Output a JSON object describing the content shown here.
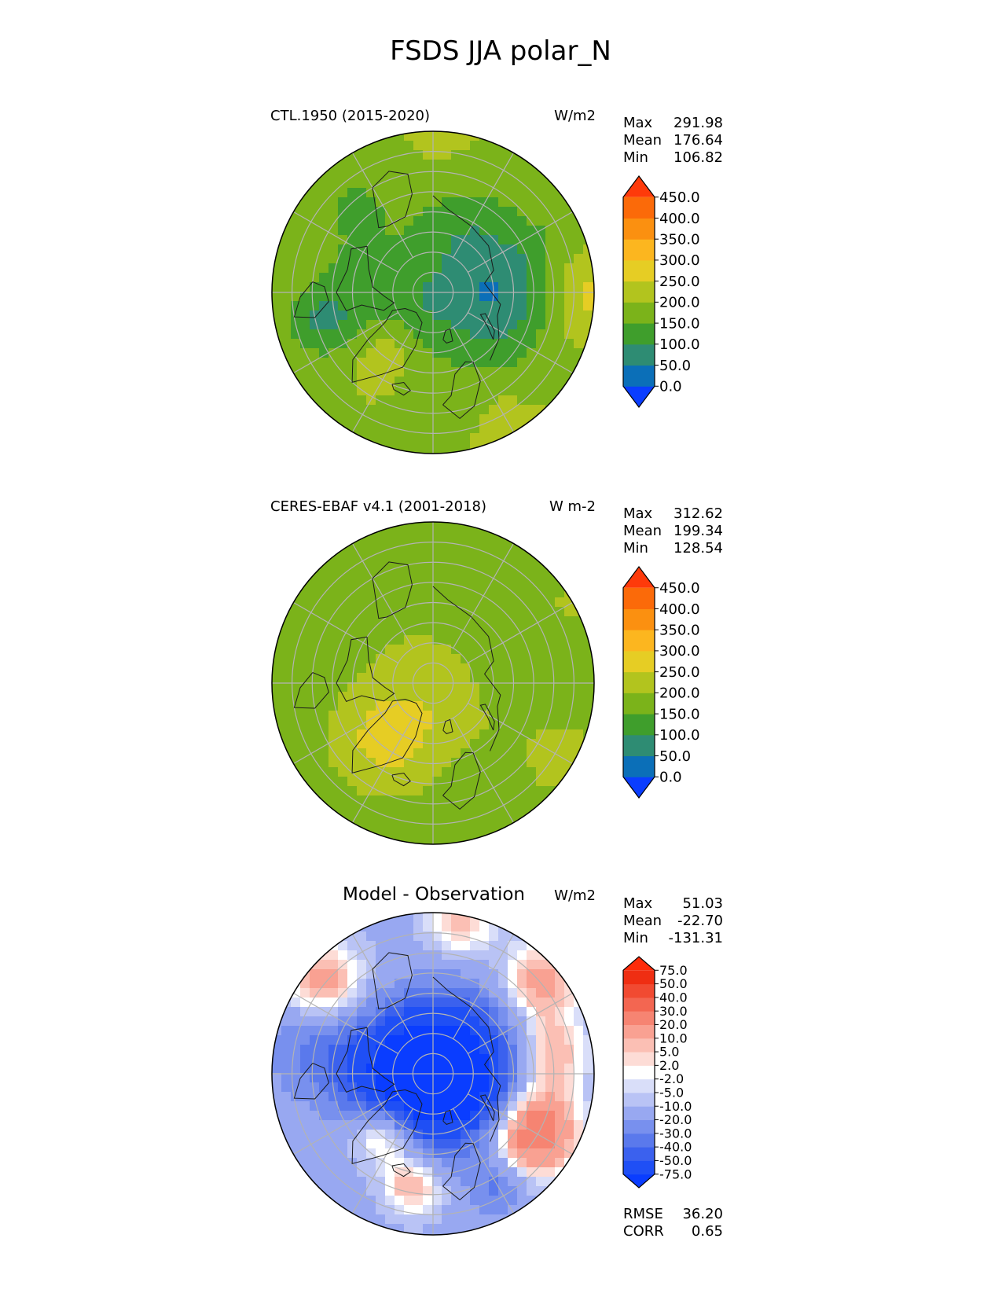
{
  "figure_title": "FSDS JJA polar_N",
  "chart_data": [
    {
      "type": "heatmap",
      "projection": "north-polar-stereographic",
      "title_left": "CTL.1950 (2015-2020)",
      "units": "W/m2",
      "stats": [
        {
          "label": "Max",
          "value": "291.98"
        },
        {
          "label": "Mean",
          "value": "176.64"
        },
        {
          "label": "Min",
          "value": "106.82"
        }
      ],
      "colorbar": {
        "extend": "both",
        "boundaries": [
          0,
          50,
          100,
          150,
          200,
          250,
          300,
          350,
          400,
          450
        ],
        "tick_labels": [
          "0.0",
          "50.0",
          "100.0",
          "150.0",
          "200.0",
          "250.0",
          "300.0",
          "350.0",
          "400.0",
          "450.0"
        ],
        "colors": [
          "#0a3dff",
          "#0b6fb8",
          "#2e8c73",
          "#3f9e2c",
          "#7bb31a",
          "#b2c41e",
          "#e6cd24",
          "#fcb61f",
          "#fb9010",
          "#fb6a09",
          "#fe3a0a"
        ]
      },
      "field": {
        "base_value": 200,
        "land_color": "#6aa22a",
        "blobs": [
          {
            "lon": 130,
            "lat": 80,
            "r": 11,
            "value": 140
          },
          {
            "lon": -20,
            "lat": 82,
            "r": 9,
            "value": 145
          },
          {
            "lon": -85,
            "lat": 70,
            "r": 12,
            "value": 140
          },
          {
            "lon": 60,
            "lat": 70,
            "r": 9,
            "value": 140
          },
          {
            "lon": 110,
            "lat": 65,
            "r": 10,
            "value": 150
          },
          {
            "lon": -40,
            "lat": 72,
            "r": 7,
            "value": 270
          },
          {
            "lon": -140,
            "lat": 60,
            "r": 8,
            "value": 150
          },
          {
            "lon": 90,
            "lat": 75,
            "r": 8,
            "value": 150
          },
          {
            "lon": 0,
            "lat": 62,
            "r": 6,
            "value": 160
          },
          {
            "lon": -75,
            "lat": 62,
            "r": 6,
            "value": 130
          },
          {
            "lon": 160,
            "lat": 70,
            "r": 8,
            "value": 160
          },
          {
            "lon": -100,
            "lat": 55,
            "r": 6,
            "value": 210
          },
          {
            "lon": 30,
            "lat": 55,
            "r": 6,
            "value": 215
          },
          {
            "lon": 90,
            "lat": 52,
            "r": 7,
            "value": 270
          },
          {
            "lon": -150,
            "lat": 52,
            "r": 6,
            "value": 205
          },
          {
            "lon": 175,
            "lat": 55,
            "r": 6,
            "value": 210
          }
        ]
      }
    },
    {
      "type": "heatmap",
      "projection": "north-polar-stereographic",
      "title_left": "CERES-EBAF v4.1 (2001-2018)",
      "units": "W m-2",
      "stats": [
        {
          "label": "Max",
          "value": "312.62"
        },
        {
          "label": "Mean",
          "value": "199.34"
        },
        {
          "label": "Min",
          "value": "128.54"
        }
      ],
      "colorbar": {
        "extend": "both",
        "boundaries": [
          0,
          50,
          100,
          150,
          200,
          250,
          300,
          350,
          400,
          450
        ],
        "tick_labels": [
          "0.0",
          "50.0",
          "100.0",
          "150.0",
          "200.0",
          "250.0",
          "300.0",
          "350.0",
          "400.0",
          "450.0"
        ],
        "colors": [
          "#0a3dff",
          "#0b6fb8",
          "#2e8c73",
          "#3f9e2c",
          "#7bb31a",
          "#b2c41e",
          "#e6cd24",
          "#fcb61f",
          "#fb9010",
          "#fb6a09",
          "#fe3a0a"
        ]
      },
      "field": {
        "base_value": 190,
        "land_color": "#6aa22a",
        "blobs": [
          {
            "lon": 0,
            "lat": 86,
            "r": 10,
            "value": 235
          },
          {
            "lon": -40,
            "lat": 72,
            "r": 7,
            "value": 275
          },
          {
            "lon": 100,
            "lat": 70,
            "r": 10,
            "value": 170
          },
          {
            "lon": -120,
            "lat": 60,
            "r": 10,
            "value": 185
          },
          {
            "lon": 30,
            "lat": 62,
            "r": 7,
            "value": 180
          },
          {
            "lon": 150,
            "lat": 65,
            "r": 10,
            "value": 180
          },
          {
            "lon": -80,
            "lat": 58,
            "r": 7,
            "value": 190
          },
          {
            "lon": 60,
            "lat": 55,
            "r": 8,
            "value": 210
          },
          {
            "lon": -170,
            "lat": 55,
            "r": 8,
            "value": 180
          },
          {
            "lon": 120,
            "lat": 52,
            "r": 6,
            "value": 205
          }
        ]
      }
    },
    {
      "type": "heatmap",
      "projection": "north-polar-stereographic",
      "title_center": "Model - Observation",
      "units": "W/m2",
      "stats": [
        {
          "label": "Max",
          "value": "51.03"
        },
        {
          "label": "Mean",
          "value": "-22.70"
        },
        {
          "label": "Min",
          "value": "-131.31"
        }
      ],
      "metrics": [
        {
          "label": "RMSE",
          "value": "36.20"
        },
        {
          "label": "CORR",
          "value": "0.65"
        }
      ],
      "colorbar": {
        "extend": "both",
        "boundaries": [
          -75,
          -50,
          -40,
          -30,
          -20,
          -10,
          -5,
          -2,
          2,
          5,
          10,
          20,
          30,
          40,
          50,
          75
        ],
        "tick_labels": [
          "-75.0",
          "-50.0",
          "-40.0",
          "-30.0",
          "-20.0",
          "-10.0",
          "-5.0",
          "-2.0",
          "2.0",
          "5.0",
          "10.0",
          "20.0",
          "30.0",
          "40.0",
          "50.0",
          "75.0"
        ],
        "colors": [
          "#0a3dff",
          "#1f4ff5",
          "#3b61ee",
          "#5a79ec",
          "#7890ee",
          "#98a8f1",
          "#b9c3f5",
          "#d9def9",
          "#ffffff",
          "#fddcd6",
          "#fbbfb4",
          "#f9a192",
          "#f68472",
          "#f36651",
          "#f14a31",
          "#ef2e12",
          "#fe2b0a"
        ]
      },
      "field": {
        "base_value": -12,
        "land_color": "#1c47f2",
        "blobs": [
          {
            "lon": 0,
            "lat": 88,
            "r": 10,
            "value": -60
          },
          {
            "lon": 60,
            "lat": 82,
            "r": 10,
            "value": -55
          },
          {
            "lon": -90,
            "lat": 80,
            "r": 10,
            "value": -60
          },
          {
            "lon": 150,
            "lat": 80,
            "r": 10,
            "value": -45
          },
          {
            "lon": -40,
            "lat": 72,
            "r": 6,
            "value": 25
          },
          {
            "lon": 60,
            "lat": 62,
            "r": 8,
            "value": 35
          },
          {
            "lon": 130,
            "lat": 55,
            "r": 7,
            "value": 15
          },
          {
            "lon": -130,
            "lat": 55,
            "r": 7,
            "value": 15
          },
          {
            "lon": -10,
            "lat": 62,
            "r": 5,
            "value": 12
          },
          {
            "lon": 100,
            "lat": 60,
            "r": 6,
            "value": 10
          },
          {
            "lon": 30,
            "lat": 58,
            "r": 5,
            "value": -35
          },
          {
            "lon": 170,
            "lat": 52,
            "r": 6,
            "value": 8
          },
          {
            "lon": -100,
            "lat": 60,
            "r": 8,
            "value": -30
          }
        ]
      }
    }
  ]
}
